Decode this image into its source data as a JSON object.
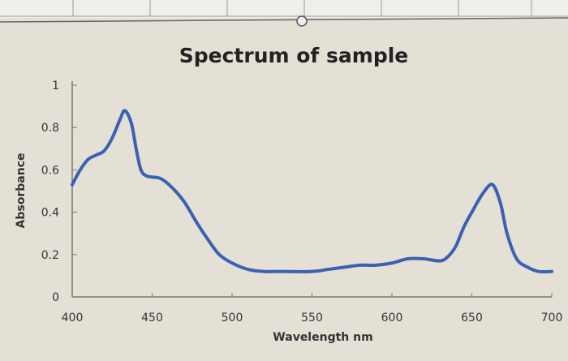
{
  "chart_data": {
    "type": "line",
    "title": "Spectrum of sample",
    "xlabel": "Wavelength nm",
    "ylabel": "Absorbance",
    "xlim": [
      400,
      700
    ],
    "ylim": [
      0,
      1
    ],
    "xticks": [
      "400",
      "450",
      "500",
      "550",
      "600",
      "650",
      "700"
    ],
    "yticks": [
      "0",
      "0.2",
      "0.4",
      "0.6",
      "0.8",
      "1"
    ],
    "grid": false,
    "legend": "none",
    "series": [
      {
        "color": "#3a62b0",
        "x": [
          400,
          405,
          410,
          415,
          420,
          425,
          430,
          433,
          437,
          440,
          443,
          447,
          455,
          462,
          470,
          478,
          485,
          492,
          500,
          510,
          520,
          530,
          550,
          560,
          570,
          580,
          590,
          600,
          610,
          620,
          630,
          635,
          640,
          645,
          650,
          657,
          663,
          668,
          672,
          678,
          685,
          692,
          700
        ],
        "y": [
          0.53,
          0.6,
          0.65,
          0.67,
          0.69,
          0.75,
          0.84,
          0.88,
          0.82,
          0.7,
          0.6,
          0.57,
          0.56,
          0.52,
          0.45,
          0.35,
          0.27,
          0.2,
          0.16,
          0.13,
          0.12,
          0.12,
          0.12,
          0.13,
          0.14,
          0.15,
          0.15,
          0.16,
          0.18,
          0.18,
          0.17,
          0.19,
          0.24,
          0.33,
          0.4,
          0.49,
          0.53,
          0.44,
          0.3,
          0.18,
          0.14,
          0.12,
          0.12
        ]
      }
    ]
  }
}
